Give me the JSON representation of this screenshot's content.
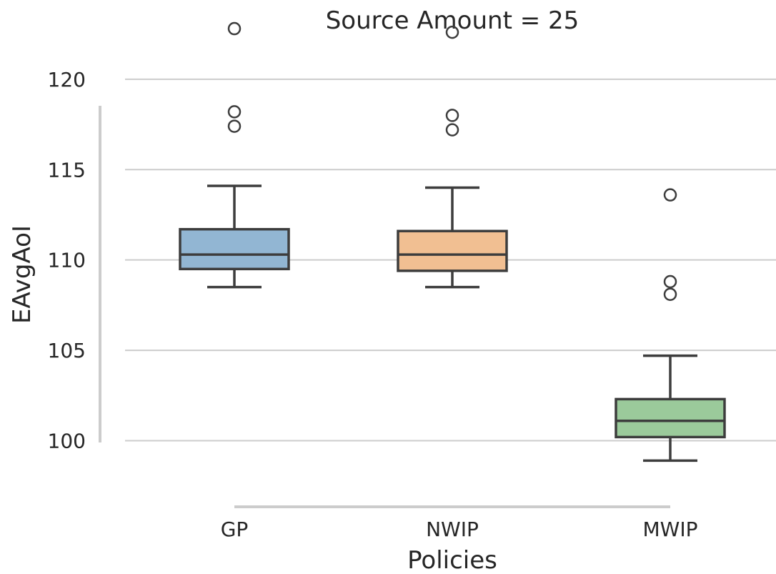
{
  "chart_data": {
    "type": "box",
    "title": "Source Amount = 25",
    "xlabel": "Policies",
    "ylabel": "EAvgAoI",
    "ylim": [
      96.5,
      123.0
    ],
    "yticks": [
      100,
      105,
      110,
      115,
      120
    ],
    "ytick_labels": [
      "100",
      "105",
      "110",
      "115",
      "120"
    ],
    "grid": "horizontal",
    "categories": [
      "GP",
      "NWIP",
      "MWIP"
    ],
    "colors": [
      "#92b6d3",
      "#f1bf92",
      "#9bca9b"
    ],
    "boxes": [
      {
        "category": "GP",
        "whisker_low": 108.5,
        "q1": 109.5,
        "median": 110.3,
        "q3": 111.7,
        "whisker_high": 114.1,
        "outliers": [
          117.4,
          118.2,
          122.8
        ]
      },
      {
        "category": "NWIP",
        "whisker_low": 108.5,
        "q1": 109.4,
        "median": 110.3,
        "q3": 111.6,
        "whisker_high": 114.0,
        "outliers": [
          117.2,
          118.0,
          122.6
        ]
      },
      {
        "category": "MWIP",
        "whisker_low": 98.9,
        "q1": 100.2,
        "median": 101.1,
        "q3": 102.3,
        "whisker_high": 104.7,
        "outliers": [
          108.1,
          108.8,
          113.6
        ]
      }
    ]
  }
}
